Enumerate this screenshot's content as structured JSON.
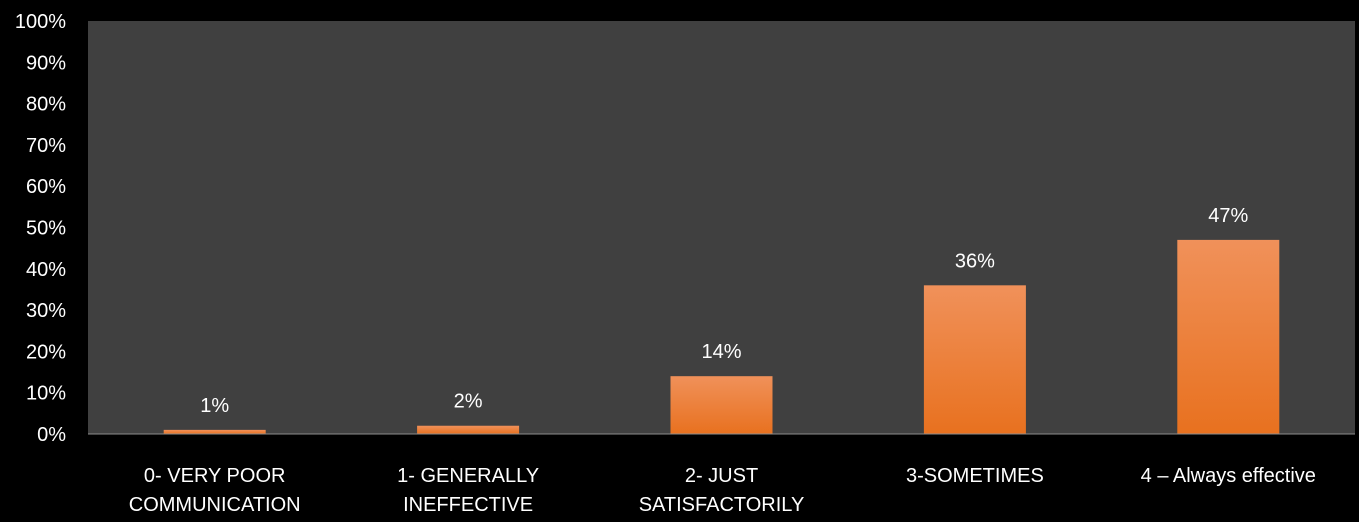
{
  "chart_data": {
    "type": "bar",
    "categories": [
      [
        "0- VERY POOR",
        "COMMUNICATION"
      ],
      [
        "1- GENERALLY",
        "INEFFECTIVE"
      ],
      [
        "2- JUST",
        "SATISFACTORILY"
      ],
      [
        "3-SOMETIMES"
      ],
      [
        "4 – Always effective"
      ]
    ],
    "values": [
      1,
      2,
      14,
      36,
      47
    ],
    "data_labels": [
      "1%",
      "2%",
      "14%",
      "36%",
      "47%"
    ],
    "ylim": [
      0,
      100
    ],
    "yticks": [
      0,
      10,
      20,
      30,
      40,
      50,
      60,
      70,
      80,
      90,
      100
    ],
    "ytick_labels": [
      "0%",
      "10%",
      "20%",
      "30%",
      "40%",
      "50%",
      "60%",
      "70%",
      "80%",
      "90%",
      "100%"
    ],
    "grid": false,
    "legend": "none",
    "colors": {
      "page_background": "#000000",
      "plot_background": "#404040",
      "bar_top": "#f0915a",
      "bar_bottom": "#e8711f",
      "text": "#ffffff",
      "axis": "#8c8c8c"
    }
  }
}
